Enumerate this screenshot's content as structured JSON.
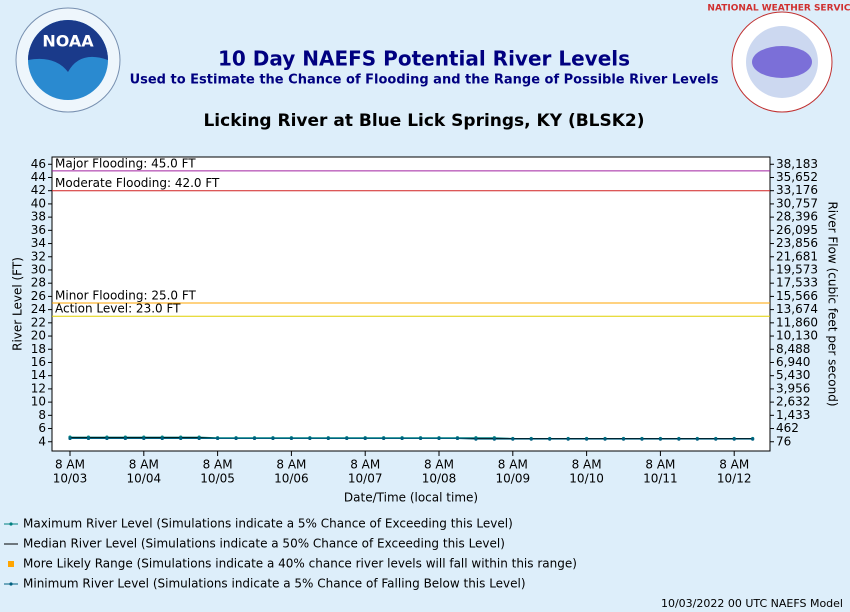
{
  "header": {
    "title": "10 Day NAEFS Potential River Levels",
    "subtitle": "Used to Estimate the Chance of Flooding and the Range of Possible River Levels",
    "noaa_logo": "NOAA",
    "nws_logo": "NATIONAL WEATHER SERVICE"
  },
  "chart_data": {
    "type": "line",
    "title": "Licking River at Blue Lick Springs, KY (BLSK2)",
    "ylabel": "River Level (FT)",
    "y2label": "River Flow (cubic feet per second)",
    "xlabel": "Date/Time (local time)",
    "ylim": [
      2.6,
      47.1
    ],
    "yticks": [
      4,
      6,
      8,
      10,
      12,
      14,
      16,
      18,
      20,
      22,
      24,
      26,
      28,
      30,
      32,
      34,
      36,
      38,
      40,
      42,
      44,
      46
    ],
    "y2ticks": [
      {
        "value": 76,
        "label": "76"
      },
      {
        "value": 462,
        "label": "462"
      },
      {
        "value": 1433,
        "label": "1,433"
      },
      {
        "value": 2632,
        "label": "2,632"
      },
      {
        "value": 3956,
        "label": "3,956"
      },
      {
        "value": 5430,
        "label": "5,430"
      },
      {
        "value": 6940,
        "label": "6,940"
      },
      {
        "value": 8488,
        "label": "8,488"
      },
      {
        "value": 10130,
        "label": "10,130"
      },
      {
        "value": 11860,
        "label": "11,860"
      },
      {
        "value": 13674,
        "label": "13,674"
      },
      {
        "value": 15566,
        "label": "15,566"
      },
      {
        "value": 17533,
        "label": "17,533"
      },
      {
        "value": 19573,
        "label": "19,573"
      },
      {
        "value": 21681,
        "label": "21,681"
      },
      {
        "value": 23856,
        "label": "23,856"
      },
      {
        "value": 26095,
        "label": "26,095"
      },
      {
        "value": 28396,
        "label": "28,396"
      },
      {
        "value": 30757,
        "label": "30,757"
      },
      {
        "value": 33176,
        "label": "33,176"
      },
      {
        "value": 35652,
        "label": "35,652"
      },
      {
        "value": 38183,
        "label": "38,183"
      }
    ],
    "xlim": [
      -0.244,
      9.485
    ],
    "xticks": [
      {
        "value": 0,
        "label": "8 AM",
        "date": "10/03"
      },
      {
        "value": 1,
        "label": "8 AM",
        "date": "10/04"
      },
      {
        "value": 2,
        "label": "8 AM",
        "date": "10/05"
      },
      {
        "value": 3,
        "label": "8 AM",
        "date": "10/06"
      },
      {
        "value": 4,
        "label": "8 AM",
        "date": "10/07"
      },
      {
        "value": 5,
        "label": "8 AM",
        "date": "10/08"
      },
      {
        "value": 6,
        "label": "8 AM",
        "date": "10/09"
      },
      {
        "value": 7,
        "label": "8 AM",
        "date": "10/10"
      },
      {
        "value": 8,
        "label": "8 AM",
        "date": "10/11"
      },
      {
        "value": 9,
        "label": "8 AM",
        "date": "10/12"
      }
    ],
    "thresholds": [
      {
        "label": "Major Flooding: 45.0 FT",
        "value": 45,
        "color": "#a020a0"
      },
      {
        "label": "Moderate Flooding: 42.0 FT",
        "value": 42,
        "color": "#d02020"
      },
      {
        "label": "Minor Flooding: 25.0 FT",
        "value": 25,
        "color": "#ffa500"
      },
      {
        "label": "Action Level: 23.0 FT",
        "value": 23,
        "color": "#e0d000"
      }
    ],
    "x": [
      0,
      0.25,
      0.5,
      0.75,
      1,
      1.25,
      1.5,
      1.75,
      2,
      2.25,
      2.5,
      2.75,
      3,
      3.25,
      3.5,
      3.75,
      4,
      4.25,
      4.5,
      4.75,
      5,
      5.25,
      5.5,
      5.75,
      6,
      6.25,
      6.5,
      6.75,
      7,
      7.25,
      7.5,
      7.75,
      8,
      8.25,
      8.5,
      8.75,
      9,
      9.25
    ],
    "series": [
      {
        "name": "Maximum River Level (Simulations indicate a 5% Chance of Exceeding this Level)",
        "color": "#008080",
        "values": [
          4.7,
          4.7,
          4.7,
          4.7,
          4.7,
          4.7,
          4.7,
          4.7,
          4.6,
          4.6,
          4.6,
          4.6,
          4.6,
          4.6,
          4.6,
          4.6,
          4.6,
          4.6,
          4.6,
          4.6,
          4.6,
          4.6,
          4.6,
          4.6,
          4.5,
          4.5,
          4.5,
          4.5,
          4.5,
          4.5,
          4.5,
          4.5,
          4.5,
          4.5,
          4.5,
          4.5,
          4.5,
          4.5
        ]
      },
      {
        "name": "Median River Level (Simulations indicate a 50% Chance of Exceeding this Level)",
        "color": "#000000",
        "values": [
          4.6,
          4.6,
          4.6,
          4.6,
          4.6,
          4.6,
          4.6,
          4.6,
          4.5,
          4.5,
          4.5,
          4.5,
          4.5,
          4.5,
          4.5,
          4.5,
          4.5,
          4.5,
          4.5,
          4.5,
          4.5,
          4.5,
          4.5,
          4.5,
          4.5,
          4.5,
          4.5,
          4.5,
          4.5,
          4.5,
          4.5,
          4.5,
          4.5,
          4.5,
          4.5,
          4.5,
          4.5,
          4.5
        ]
      },
      {
        "name": "Minimum River Level (Simulations indicate a 5% Chance of Falling Below this Level)",
        "color": "#006080",
        "values": [
          4.5,
          4.5,
          4.5,
          4.5,
          4.5,
          4.5,
          4.5,
          4.5,
          4.5,
          4.5,
          4.5,
          4.5,
          4.5,
          4.5,
          4.5,
          4.5,
          4.5,
          4.5,
          4.5,
          4.5,
          4.5,
          4.5,
          4.4,
          4.4,
          4.4,
          4.4,
          4.4,
          4.4,
          4.4,
          4.4,
          4.4,
          4.4,
          4.4,
          4.4,
          4.4,
          4.4,
          4.4,
          4.4
        ]
      }
    ],
    "range": {
      "name": "More Likely Range (Simulations indicate a 40% chance river levels will fall within this range)",
      "color": "#ffa500"
    },
    "footer": "10/03/2022 00 UTC NAEFS Model"
  }
}
